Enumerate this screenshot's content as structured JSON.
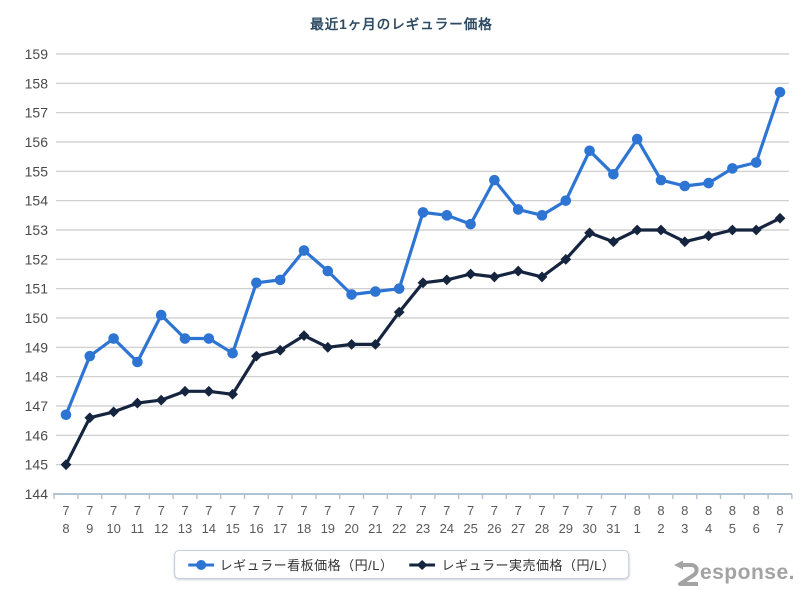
{
  "page": {
    "watermark": "Response."
  },
  "colors": {
    "signboard_series": "#2e75d3",
    "actual_series": "#16253f",
    "gridline": "#c9c9c9",
    "axis_line": "#aec3d6",
    "y_label": "#4a4a4a",
    "x_label": "#5a5a5a",
    "title_text": "#2d4a63",
    "legend_border": "#c6cfd8",
    "watermark": "#a3a3a3"
  },
  "chart_data": {
    "type": "line",
    "title": "最近1ヶ月のレギュラー価格",
    "categories": [
      "7/8",
      "7/9",
      "7/10",
      "7/11",
      "7/12",
      "7/13",
      "7/14",
      "7/15",
      "7/16",
      "7/17",
      "7/18",
      "7/19",
      "7/20",
      "7/21",
      "7/22",
      "7/23",
      "7/24",
      "7/25",
      "7/26",
      "7/27",
      "7/28",
      "7/29",
      "7/30",
      "7/31",
      "8/1",
      "8/2",
      "8/3",
      "8/4",
      "8/5",
      "8/6",
      "8/7"
    ],
    "series": [
      {
        "name": "レギュラー看板価格（円/L）",
        "marker": "circle",
        "color": "#2e75d3",
        "values": [
          146.7,
          148.7,
          149.3,
          148.5,
          150.1,
          149.3,
          149.3,
          148.8,
          151.2,
          151.3,
          152.3,
          151.6,
          150.8,
          150.9,
          151.0,
          153.6,
          153.5,
          153.2,
          154.7,
          153.7,
          153.5,
          154.0,
          155.7,
          154.9,
          156.1,
          154.7,
          154.5,
          154.6,
          155.1,
          155.3,
          157.7
        ]
      },
      {
        "name": "レギュラー実売価格（円/L）",
        "marker": "diamond",
        "color": "#16253f",
        "values": [
          145.0,
          146.6,
          146.8,
          147.1,
          147.2,
          147.5,
          147.5,
          147.4,
          148.7,
          148.9,
          149.4,
          149.0,
          149.1,
          149.1,
          150.2,
          151.2,
          151.3,
          151.5,
          151.4,
          151.6,
          151.4,
          152.0,
          152.9,
          152.6,
          153.0,
          153.0,
          152.6,
          152.8,
          153.0,
          153.0,
          153.4
        ]
      }
    ],
    "ylim": [
      144,
      159
    ],
    "ytick_step": 1,
    "xlabel": "",
    "ylabel": "",
    "grid": true,
    "legend_position": "bottom"
  }
}
